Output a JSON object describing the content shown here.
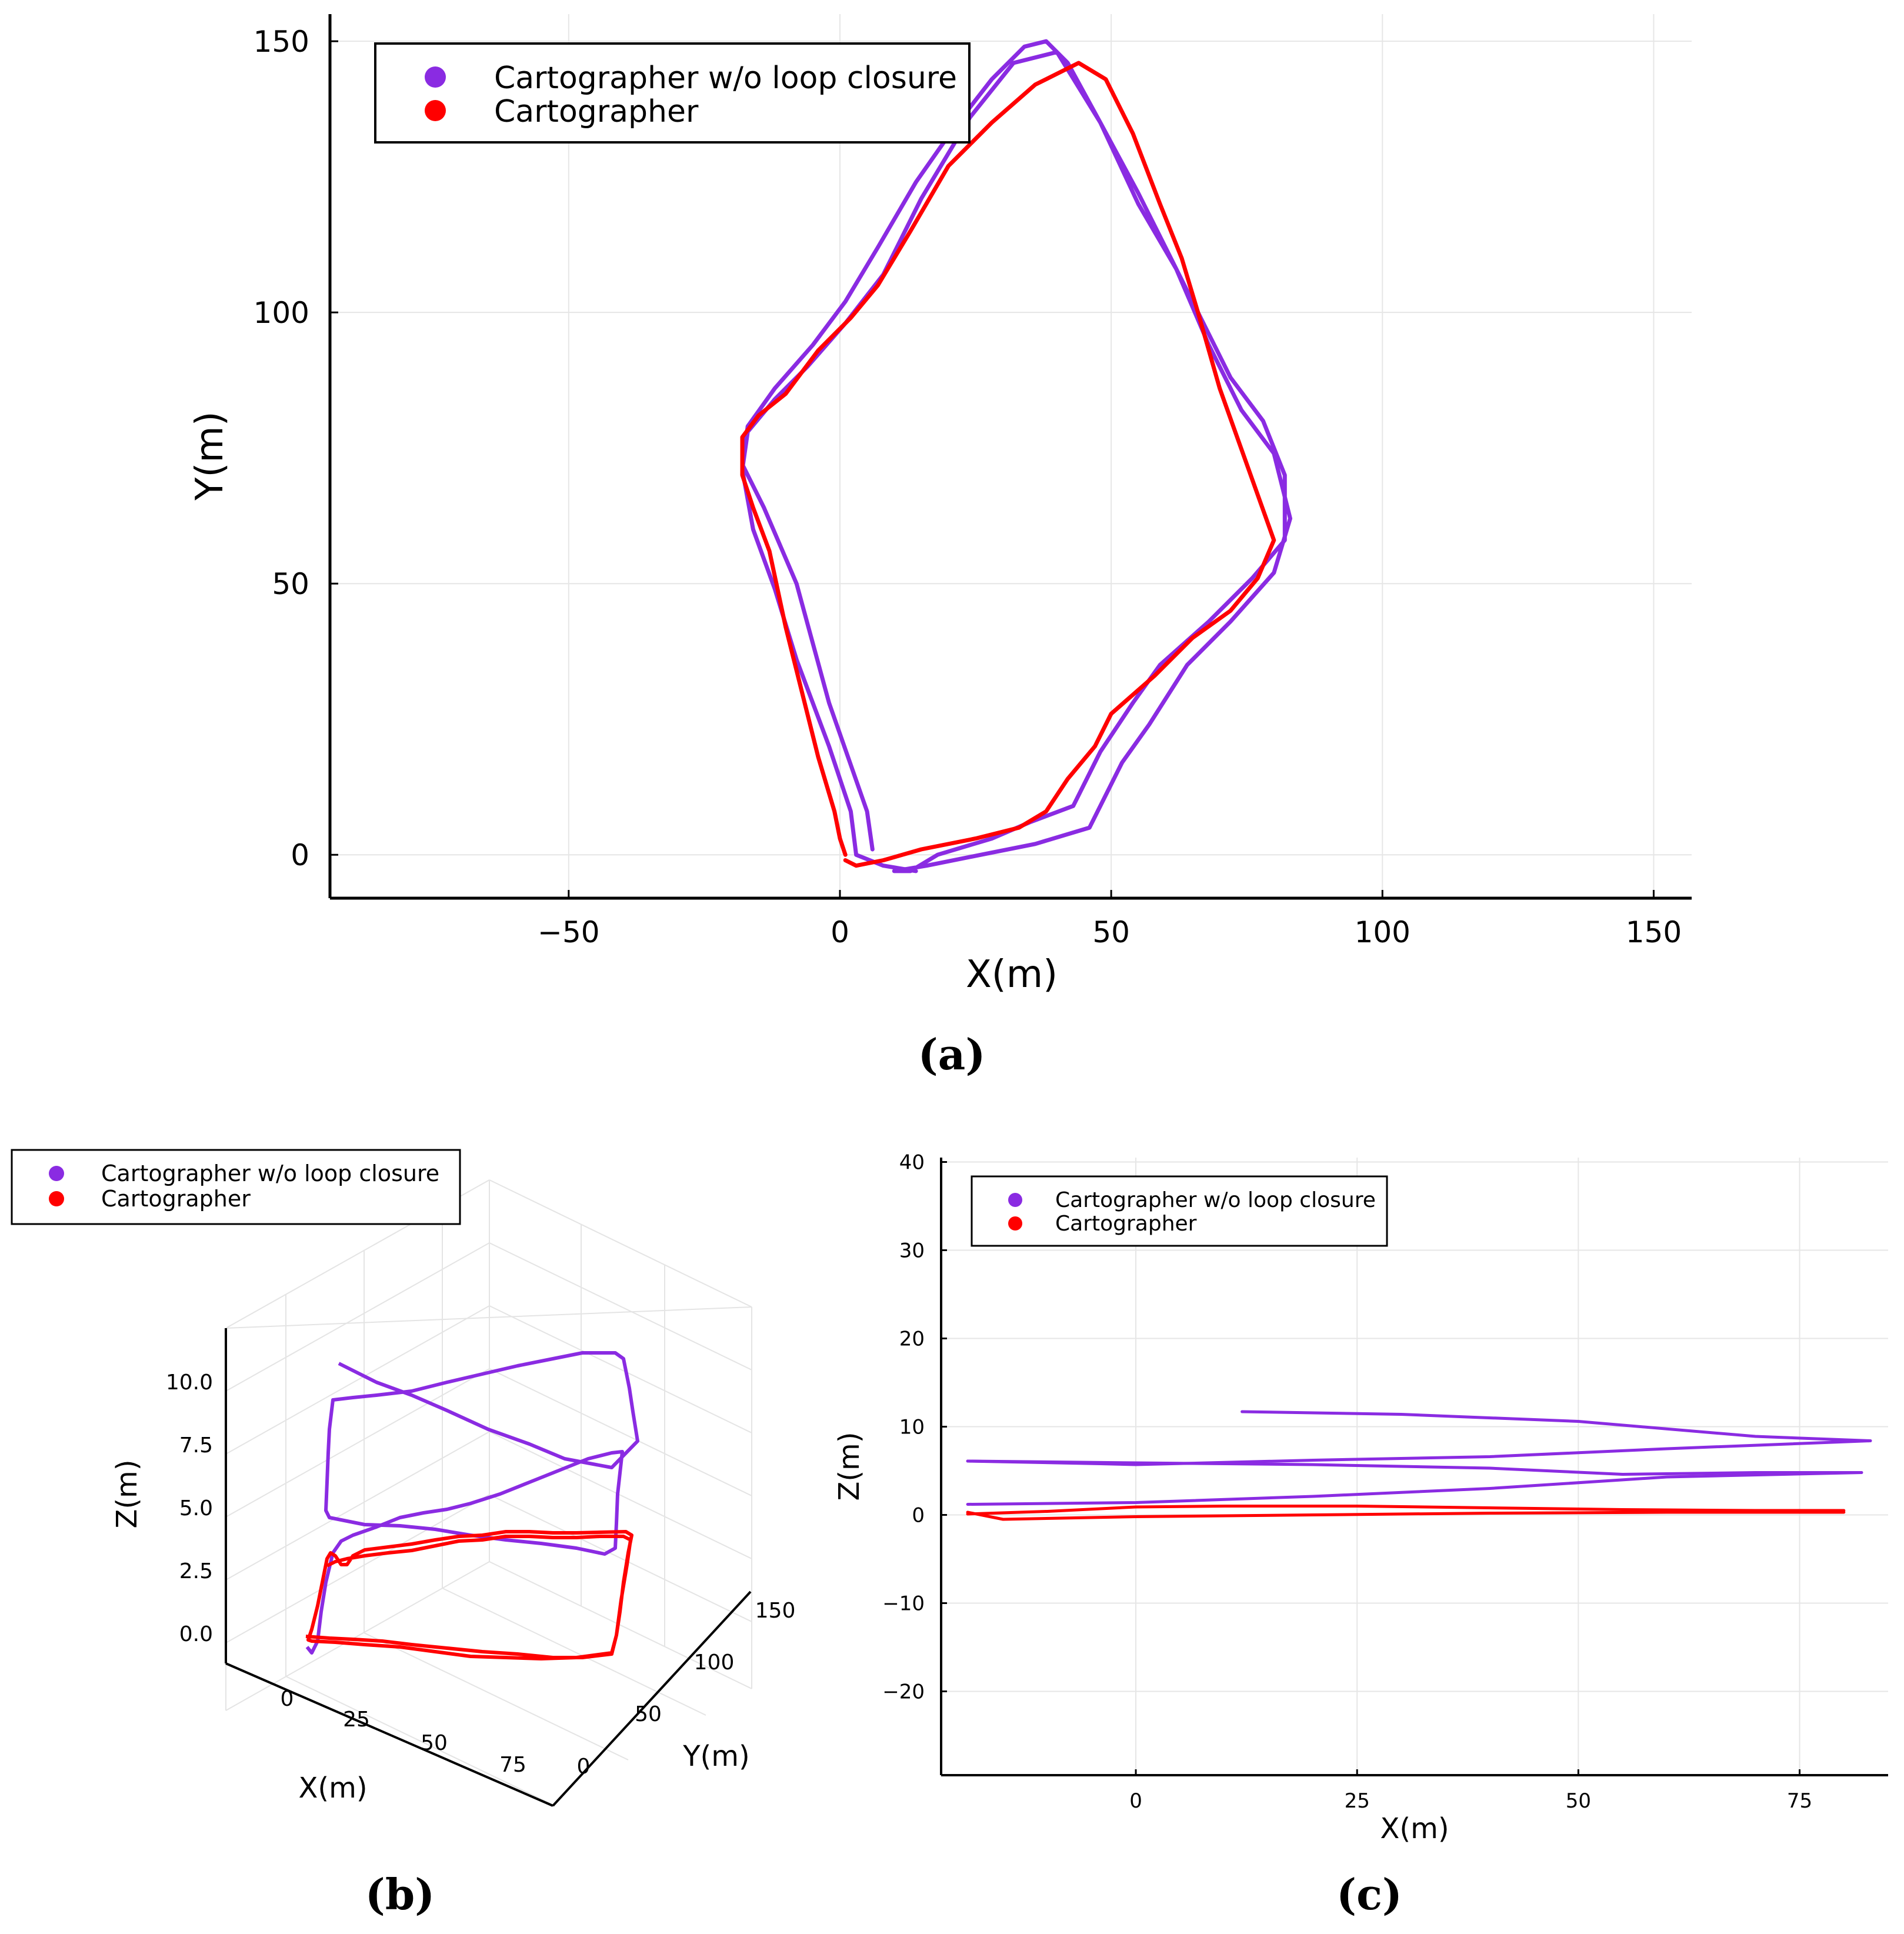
{
  "colors": {
    "purple": "#8a2be2",
    "red": "#ff0000"
  },
  "chart_data": [
    {
      "id": "a",
      "type": "line",
      "caption": "(a)",
      "xlabel": "X(m)",
      "ylabel": "Y(m)",
      "xlim": [
        -94,
        157
      ],
      "ylim": [
        -8,
        155
      ],
      "x_ticks": [
        -50,
        0,
        50,
        100,
        150
      ],
      "x_tick_labels": [
        "−50",
        "0",
        "50",
        "100",
        "150"
      ],
      "y_ticks": [
        0,
        50,
        100,
        150
      ],
      "y_tick_labels": [
        "0",
        "50",
        "100",
        "150"
      ],
      "grid": true,
      "legend": {
        "position": "top-left",
        "entries": [
          "Cartographer w/o loop closure",
          "Cartographer"
        ]
      },
      "series": [
        {
          "name": "Cartographer w/o loop closure",
          "color": "#8a2be2",
          "points": [
            [
              6,
              1
            ],
            [
              5,
              8
            ],
            [
              -2,
              28
            ],
            [
              -8,
              50
            ],
            [
              -14,
              64
            ],
            [
              -18,
              72
            ],
            [
              -17,
              79
            ],
            [
              -12,
              86
            ],
            [
              -5,
              94
            ],
            [
              1,
              102
            ],
            [
              7,
              112
            ],
            [
              14,
              124
            ],
            [
              21,
              134
            ],
            [
              28,
              143
            ],
            [
              34,
              149
            ],
            [
              38,
              150
            ],
            [
              42,
              146
            ],
            [
              48,
              135
            ],
            [
              55,
              122
            ],
            [
              60,
              112
            ],
            [
              66,
              100
            ],
            [
              72,
              88
            ],
            [
              78,
              80
            ],
            [
              82,
              70
            ],
            [
              82,
              58
            ],
            [
              76,
              51
            ],
            [
              68,
              43
            ],
            [
              59,
              35
            ],
            [
              54,
              28
            ],
            [
              48,
              19
            ],
            [
              43,
              9
            ],
            [
              35,
              6
            ],
            [
              28,
              3
            ],
            [
              18,
              0
            ],
            [
              13,
              -3
            ],
            [
              10,
              -3
            ],
            [
              16,
              -2
            ],
            [
              26,
              0
            ],
            [
              36,
              2
            ],
            [
              46,
              5
            ],
            [
              52,
              17
            ],
            [
              57,
              24
            ],
            [
              64,
              35
            ],
            [
              72,
              43
            ],
            [
              80,
              52
            ],
            [
              83,
              62
            ],
            [
              80,
              74
            ],
            [
              74,
              82
            ],
            [
              68,
              94
            ],
            [
              62,
              108
            ],
            [
              55,
              120
            ],
            [
              48,
              135
            ],
            [
              40,
              148
            ],
            [
              32,
              146
            ],
            [
              24,
              136
            ],
            [
              15,
              121
            ],
            [
              8,
              107
            ],
            [
              1,
              98
            ],
            [
              -6,
              90
            ],
            [
              -12,
              84
            ],
            [
              -17,
              78
            ],
            [
              -18,
              71
            ],
            [
              -16,
              60
            ],
            [
              -12,
              49
            ],
            [
              -8,
              36
            ],
            [
              -2,
              20
            ],
            [
              2,
              8
            ],
            [
              3,
              0
            ],
            [
              8,
              -2
            ],
            [
              14,
              -3
            ]
          ]
        },
        {
          "name": "Cartographer",
          "color": "#ff0000",
          "points": [
            [
              1,
              0
            ],
            [
              0,
              3
            ],
            [
              -1,
              8
            ],
            [
              -4,
              18
            ],
            [
              -7,
              30
            ],
            [
              -10,
              42
            ],
            [
              -13,
              56
            ],
            [
              -16,
              64
            ],
            [
              -18,
              70
            ],
            [
              -18,
              77
            ],
            [
              -15,
              81
            ],
            [
              -10,
              85
            ],
            [
              -4,
              93
            ],
            [
              2,
              99
            ],
            [
              7,
              105
            ],
            [
              13,
              115
            ],
            [
              20,
              127
            ],
            [
              28,
              135
            ],
            [
              36,
              142
            ],
            [
              44,
              146
            ],
            [
              49,
              143
            ],
            [
              54,
              133
            ],
            [
              59,
              120
            ],
            [
              63,
              110
            ],
            [
              66,
              100
            ],
            [
              70,
              86
            ],
            [
              75,
              72
            ],
            [
              80,
              58
            ],
            [
              77,
              51
            ],
            [
              72,
              45
            ],
            [
              65,
              40
            ],
            [
              58,
              33
            ],
            [
              50,
              26
            ],
            [
              47,
              20
            ],
            [
              42,
              14
            ],
            [
              38,
              8
            ],
            [
              33,
              5
            ],
            [
              25,
              3
            ],
            [
              15,
              1
            ],
            [
              8,
              -1
            ],
            [
              3,
              -2
            ],
            [
              1,
              -1
            ]
          ]
        }
      ]
    },
    {
      "id": "b",
      "type": "line",
      "caption": "(b)",
      "xlabel": "X(m)",
      "ylabel": "Y(m)",
      "zlabel": "Z(m)",
      "x_tick_labels": [
        "0",
        "25",
        "50",
        "75"
      ],
      "y_tick_labels": [
        "0",
        "50",
        "100",
        "150"
      ],
      "z_tick_labels": [
        "0.0",
        "2.5",
        "5.0",
        "7.5",
        "10.0"
      ],
      "grid": true,
      "legend": {
        "position": "top-left",
        "entries": [
          "Cartographer w/o loop closure",
          "Cartographer"
        ]
      },
      "series": [
        {
          "name": "Cartographer w/o loop closure",
          "color": "#8a2be2"
        },
        {
          "name": "Cartographer",
          "color": "#ff0000"
        }
      ]
    },
    {
      "id": "c",
      "type": "line",
      "caption": "(c)",
      "xlabel": "X(m)",
      "ylabel": "Z(m)",
      "xlim": [
        -22,
        85
      ],
      "ylim": [
        -29.5,
        40.5
      ],
      "x_ticks": [
        0,
        25,
        50,
        75
      ],
      "x_tick_labels": [
        "0",
        "25",
        "50",
        "75"
      ],
      "y_ticks": [
        -20,
        -10,
        0,
        10,
        20,
        30,
        40
      ],
      "y_tick_labels": [
        "−20",
        "−10",
        "0",
        "10",
        "20",
        "30",
        "40"
      ],
      "grid": true,
      "legend": {
        "position": "top-left",
        "entries": [
          "Cartographer w/o loop closure",
          "Cartographer"
        ]
      },
      "series": [
        {
          "name": "Cartographer w/o loop closure",
          "color": "#8a2be2",
          "segments": [
            [
              [
                12,
                11.7
              ],
              [
                30,
                11.4
              ],
              [
                50,
                10.6
              ],
              [
                70,
                8.9
              ],
              [
                83,
                8.4
              ]
            ],
            [
              [
                83,
                8.4
              ],
              [
                60,
                7.5
              ],
              [
                40,
                6.6
              ],
              [
                20,
                6.2
              ],
              [
                0,
                5.7
              ],
              [
                -4,
                5.8
              ],
              [
                -19,
                6.1
              ]
            ],
            [
              [
                -19,
                6.1
              ],
              [
                0,
                5.9
              ],
              [
                20,
                5.7
              ],
              [
                40,
                5.3
              ],
              [
                55,
                4.6
              ],
              [
                70,
                4.8
              ],
              [
                82,
                4.8
              ]
            ],
            [
              [
                82,
                4.8
              ],
              [
                60,
                4.3
              ],
              [
                40,
                3.0
              ],
              [
                20,
                2.1
              ],
              [
                0,
                1.4
              ],
              [
                -19,
                1.2
              ]
            ]
          ]
        },
        {
          "name": "Cartographer",
          "color": "#ff0000",
          "segments": [
            [
              [
                -19,
                0.1
              ],
              [
                -10,
                0.4
              ],
              [
                0,
                0.9
              ],
              [
                10,
                1.0
              ],
              [
                25,
                1.0
              ],
              [
                40,
                0.8
              ],
              [
                55,
                0.6
              ],
              [
                70,
                0.5
              ],
              [
                80,
                0.5
              ]
            ],
            [
              [
                80,
                0.3
              ],
              [
                60,
                0.3
              ],
              [
                40,
                0.2
              ],
              [
                20,
                0
              ],
              [
                0,
                -0.2
              ],
              [
                -15,
                -0.5
              ],
              [
                -19,
                0.3
              ]
            ]
          ]
        }
      ]
    }
  ]
}
